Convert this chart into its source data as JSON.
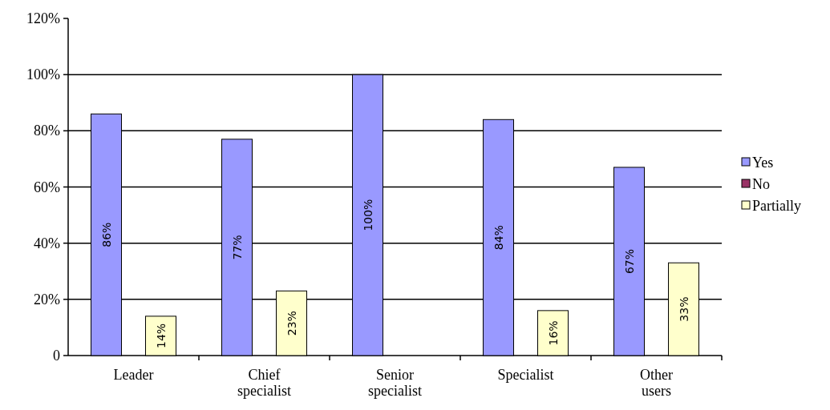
{
  "chart_data": {
    "type": "bar",
    "categories": [
      "Leader",
      "Chief specialist",
      "Senior specialist",
      "Specialist",
      "Other users"
    ],
    "series": [
      {
        "name": "Yes",
        "color": "#9999ff",
        "values": [
          86,
          77,
          100,
          84,
          67
        ],
        "value_labels": [
          "86%",
          "77%",
          "100%",
          "84%",
          "67%"
        ]
      },
      {
        "name": "No",
        "color": "#993366",
        "values": [
          0,
          0,
          0,
          0,
          0
        ],
        "value_labels": [
          null,
          null,
          null,
          null,
          null
        ]
      },
      {
        "name": "Partially",
        "color": "#ffffcc",
        "values": [
          14,
          23,
          0,
          16,
          33
        ],
        "value_labels": [
          "14%",
          "23%",
          null,
          "16%",
          "33%"
        ]
      }
    ],
    "ylim": [
      0,
      120
    ],
    "yticks": [
      {
        "value": 0,
        "label": "0"
      },
      {
        "value": 20,
        "label": "20%"
      },
      {
        "value": 40,
        "label": "40%"
      },
      {
        "value": 60,
        "label": "60%"
      },
      {
        "value": 80,
        "label": "80%"
      },
      {
        "value": 100,
        "label": "100%"
      },
      {
        "value": 120,
        "label": "120%"
      }
    ],
    "grid": "y",
    "legend": "right"
  }
}
